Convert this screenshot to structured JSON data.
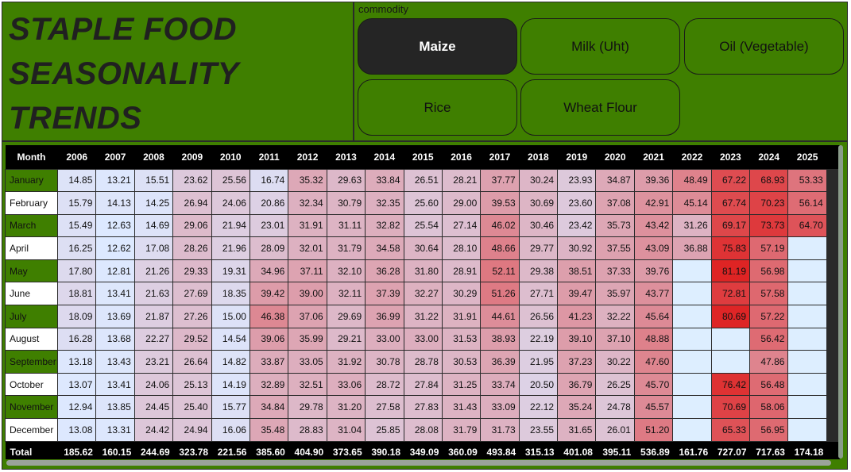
{
  "title": {
    "line1": "STAPLE FOOD",
    "line2": "SEASONALITY",
    "line3": "TRENDS"
  },
  "slicer": {
    "header": "commodity",
    "options": [
      {
        "label": "Maize",
        "selected": true
      },
      {
        "label": "Milk (Uht)",
        "selected": false
      },
      {
        "label": "Oil (Vegetable)",
        "selected": false
      },
      {
        "label": "Rice",
        "selected": false
      },
      {
        "label": "Wheat Flour",
        "selected": false
      }
    ]
  },
  "matrix": {
    "corner": "Month",
    "total_label": "Total",
    "years": [
      "2006",
      "2007",
      "2008",
      "2009",
      "2010",
      "2011",
      "2012",
      "2013",
      "2014",
      "2015",
      "2016",
      "2017",
      "2018",
      "2019",
      "2020",
      "2021",
      "2022",
      "2023",
      "2024",
      "2025"
    ],
    "rows": [
      {
        "month": "January",
        "values": [
          "14.85",
          "13.21",
          "15.51",
          "23.62",
          "25.56",
          "16.74",
          "35.32",
          "29.63",
          "33.84",
          "26.51",
          "28.21",
          "37.77",
          "30.24",
          "23.93",
          "34.87",
          "39.36",
          "48.49",
          "67.22",
          "68.93",
          "53.33"
        ]
      },
      {
        "month": "February",
        "values": [
          "15.79",
          "14.13",
          "14.25",
          "26.94",
          "24.06",
          "20.86",
          "32.34",
          "30.79",
          "32.35",
          "25.60",
          "29.00",
          "39.53",
          "30.69",
          "23.60",
          "37.08",
          "42.91",
          "45.14",
          "67.74",
          "70.23",
          "56.14"
        ]
      },
      {
        "month": "March",
        "values": [
          "15.49",
          "12.63",
          "14.69",
          "29.06",
          "21.94",
          "23.01",
          "31.91",
          "31.11",
          "32.82",
          "25.54",
          "27.14",
          "46.02",
          "30.46",
          "23.42",
          "35.73",
          "43.42",
          "31.26",
          "69.17",
          "73.73",
          "64.70"
        ]
      },
      {
        "month": "April",
        "values": [
          "16.25",
          "12.62",
          "17.08",
          "28.26",
          "21.96",
          "28.09",
          "32.01",
          "31.79",
          "34.58",
          "30.64",
          "28.10",
          "48.66",
          "29.77",
          "30.92",
          "37.55",
          "43.09",
          "36.88",
          "75.83",
          "57.19",
          ""
        ]
      },
      {
        "month": "May",
        "values": [
          "17.80",
          "12.81",
          "21.26",
          "29.33",
          "19.31",
          "34.96",
          "37.11",
          "32.10",
          "36.28",
          "31.80",
          "28.91",
          "52.11",
          "29.38",
          "38.51",
          "37.33",
          "39.76",
          "",
          "81.19",
          "56.98",
          ""
        ]
      },
      {
        "month": "June",
        "values": [
          "18.81",
          "13.41",
          "21.63",
          "27.69",
          "18.35",
          "39.42",
          "39.00",
          "32.11",
          "37.39",
          "32.27",
          "30.29",
          "51.26",
          "27.71",
          "39.47",
          "35.97",
          "43.77",
          "",
          "72.81",
          "57.58",
          ""
        ]
      },
      {
        "month": "July",
        "values": [
          "18.09",
          "13.69",
          "21.87",
          "27.26",
          "15.00",
          "46.38",
          "37.06",
          "29.69",
          "36.99",
          "31.22",
          "31.91",
          "44.61",
          "26.56",
          "41.23",
          "32.22",
          "45.64",
          "",
          "80.69",
          "57.22",
          ""
        ]
      },
      {
        "month": "August",
        "values": [
          "16.28",
          "13.68",
          "22.27",
          "29.52",
          "14.54",
          "39.06",
          "35.99",
          "29.21",
          "33.00",
          "33.00",
          "31.53",
          "38.93",
          "22.19",
          "39.10",
          "37.10",
          "48.88",
          "",
          "",
          "56.42",
          ""
        ]
      },
      {
        "month": "September",
        "values": [
          "13.18",
          "13.43",
          "23.21",
          "26.64",
          "14.82",
          "33.87",
          "33.05",
          "31.92",
          "30.78",
          "28.78",
          "30.53",
          "36.39",
          "21.95",
          "37.23",
          "30.22",
          "47.60",
          "",
          "",
          "47.86",
          ""
        ]
      },
      {
        "month": "October",
        "values": [
          "13.07",
          "13.41",
          "24.06",
          "25.13",
          "14.19",
          "32.89",
          "32.51",
          "33.06",
          "28.72",
          "27.84",
          "31.25",
          "33.74",
          "20.50",
          "36.79",
          "26.25",
          "45.70",
          "",
          "76.42",
          "56.48",
          ""
        ]
      },
      {
        "month": "November",
        "values": [
          "12.94",
          "13.85",
          "24.45",
          "25.40",
          "15.77",
          "34.84",
          "29.78",
          "31.20",
          "27.58",
          "27.83",
          "31.43",
          "33.09",
          "22.12",
          "35.24",
          "24.78",
          "45.57",
          "",
          "70.69",
          "58.06",
          ""
        ]
      },
      {
        "month": "December",
        "values": [
          "13.08",
          "13.31",
          "24.42",
          "24.94",
          "16.06",
          "35.48",
          "28.83",
          "31.04",
          "25.85",
          "28.08",
          "31.79",
          "31.73",
          "23.55",
          "31.65",
          "26.01",
          "51.20",
          "",
          "65.33",
          "56.95",
          ""
        ]
      }
    ],
    "totals": [
      "185.62",
      "160.15",
      "244.69",
      "323.78",
      "221.56",
      "385.60",
      "404.90",
      "373.65",
      "390.18",
      "349.09",
      "360.09",
      "493.84",
      "315.13",
      "401.08",
      "395.11",
      "536.89",
      "161.76",
      "727.07",
      "717.63",
      "174.18"
    ],
    "scale": {
      "min": 12.62,
      "max": 81.19,
      "low_color": "#dde9ff",
      "high_color": "#de2424",
      "blank_color": "#ddeeff"
    }
  }
}
